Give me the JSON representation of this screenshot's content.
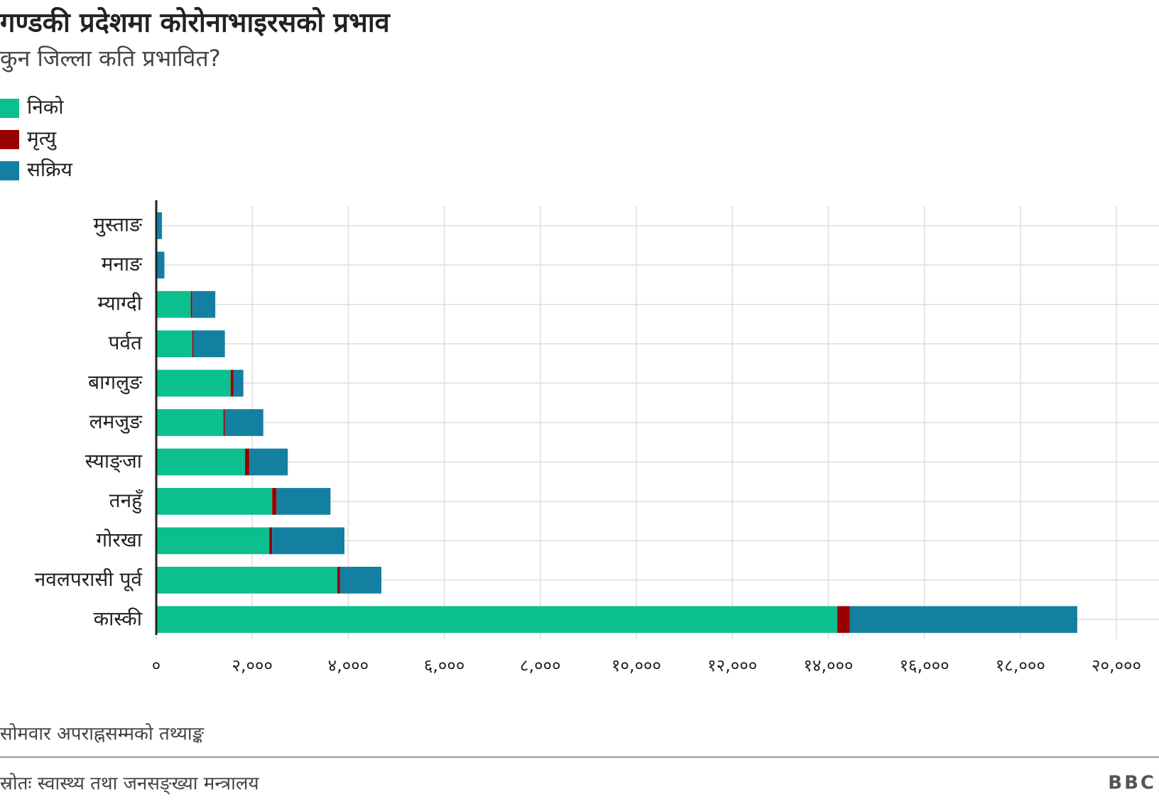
{
  "chart_data": {
    "type": "stacked-bar-horizontal",
    "title": "गण्डकी प्रदेशमा कोरोनाभाइरसको प्रभाव",
    "subtitle": "कुन जिल्ला कति प्रभावित?",
    "categories": [
      "मुस्ताङ",
      "मनाङ",
      "म्याग्दी",
      "पर्वत",
      "बागलुङ",
      "लमजुङ",
      "स्याङ्जा",
      "तनहुँ",
      "गोरखा",
      "नवलपरासी पूर्व",
      "कास्की"
    ],
    "series": [
      {
        "name": "निको",
        "color": "#0bbf8f",
        "values": [
          30,
          10,
          720,
          750,
          1550,
          1400,
          1850,
          2415,
          2355,
          3770,
          14185
        ]
      },
      {
        "name": "मृत्यु",
        "color": "#990000",
        "values": [
          0,
          0,
          30,
          30,
          60,
          30,
          90,
          90,
          60,
          60,
          260
        ]
      },
      {
        "name": "सक्रिय",
        "color": "#1380a1",
        "values": [
          90,
          160,
          480,
          650,
          205,
          800,
          800,
          1125,
          1505,
          860,
          4740
        ]
      }
    ],
    "xlim": [
      0,
      20000
    ],
    "xticks": [
      {
        "value": 0,
        "label": "०"
      },
      {
        "value": 2000,
        "label": "२,०००"
      },
      {
        "value": 4000,
        "label": "४,०००"
      },
      {
        "value": 6000,
        "label": "६,०००"
      },
      {
        "value": 8000,
        "label": "८,०००"
      },
      {
        "value": 10000,
        "label": "१०,०००"
      },
      {
        "value": 12000,
        "label": "१२,०००"
      },
      {
        "value": 14000,
        "label": "१४,०००"
      },
      {
        "value": 16000,
        "label": "१६,०००"
      },
      {
        "value": 18000,
        "label": "१८,०००"
      },
      {
        "value": 20000,
        "label": "२०,०००"
      }
    ],
    "grid": true,
    "legend": "top-left",
    "note": "सोमवार अपराह्नसम्मको तथ्याङ्क",
    "source": "स्रोतः स्वास्थ्य तथा जनसङ्ख्या मन्त्रालय",
    "brand": "BBC"
  }
}
